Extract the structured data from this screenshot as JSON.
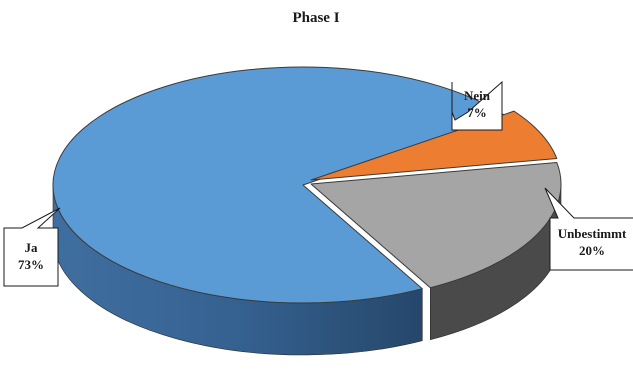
{
  "chart_data": {
    "type": "pie",
    "title": "Phase I",
    "labels": [
      "Ja",
      "Nein",
      "Unbestimmt"
    ],
    "values": [
      73,
      7,
      20
    ],
    "value_labels": [
      "73%",
      "7%",
      "20%"
    ],
    "colors": [
      "#5b9bd5",
      "#ed7d31",
      "#a5a5a5"
    ],
    "side_colors": [
      "#3e6f9e",
      "#b05e22",
      "#4a4a4a"
    ],
    "style": "3d-exploded-slices-with-callout-labels",
    "legend": "none"
  }
}
